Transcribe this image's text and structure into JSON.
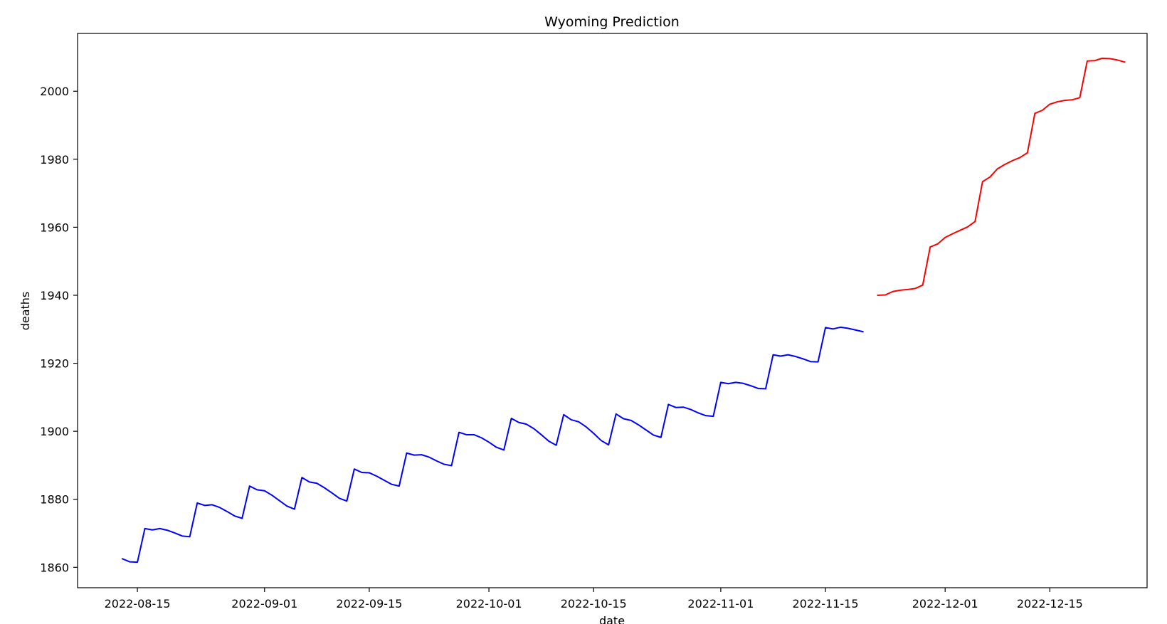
{
  "chart_data": {
    "type": "line",
    "title": "Wyoming Prediction",
    "xlabel": "date",
    "ylabel": "deaths",
    "x_axis_type": "date",
    "xlim": [
      "2022-08-07",
      "2022-12-28"
    ],
    "ylim": [
      1854,
      2017
    ],
    "x_ticks": [
      "2022-08-15",
      "2022-09-01",
      "2022-09-15",
      "2022-10-01",
      "2022-10-15",
      "2022-11-01",
      "2022-11-15",
      "2022-12-01",
      "2022-12-15"
    ],
    "y_ticks": [
      1860,
      1880,
      1900,
      1920,
      1940,
      1960,
      1980,
      2000
    ],
    "grid": false,
    "legend": false,
    "series": [
      {
        "color": "#0000ff",
        "points": [
          [
            "2022-08-13",
            1862.5
          ],
          [
            "2022-08-14",
            1861.6
          ],
          [
            "2022-08-15",
            1861.5
          ],
          [
            "2022-08-16",
            1871.4
          ],
          [
            "2022-08-17",
            1871.0
          ],
          [
            "2022-08-18",
            1871.4
          ],
          [
            "2022-08-19",
            1870.9
          ],
          [
            "2022-08-20",
            1870.1
          ],
          [
            "2022-08-21",
            1869.2
          ],
          [
            "2022-08-22",
            1869.0
          ],
          [
            "2022-08-23",
            1878.9
          ],
          [
            "2022-08-24",
            1878.2
          ],
          [
            "2022-08-25",
            1878.4
          ],
          [
            "2022-08-26",
            1877.6
          ],
          [
            "2022-08-27",
            1876.4
          ],
          [
            "2022-08-28",
            1875.1
          ],
          [
            "2022-08-29",
            1874.4
          ],
          [
            "2022-08-30",
            1883.9
          ],
          [
            "2022-08-31",
            1882.8
          ],
          [
            "2022-09-01",
            1882.5
          ],
          [
            "2022-09-02",
            1881.2
          ],
          [
            "2022-09-03",
            1879.6
          ],
          [
            "2022-09-04",
            1878.0
          ],
          [
            "2022-09-05",
            1877.1
          ],
          [
            "2022-09-06",
            1886.4
          ],
          [
            "2022-09-07",
            1885.1
          ],
          [
            "2022-09-08",
            1884.7
          ],
          [
            "2022-09-09",
            1883.4
          ],
          [
            "2022-09-10",
            1881.9
          ],
          [
            "2022-09-11",
            1880.3
          ],
          [
            "2022-09-12",
            1879.5
          ],
          [
            "2022-09-13",
            1888.9
          ],
          [
            "2022-09-14",
            1887.9
          ],
          [
            "2022-09-15",
            1887.8
          ],
          [
            "2022-09-16",
            1886.8
          ],
          [
            "2022-09-17",
            1885.6
          ],
          [
            "2022-09-18",
            1884.4
          ],
          [
            "2022-09-19",
            1883.9
          ],
          [
            "2022-09-20",
            1893.6
          ],
          [
            "2022-09-21",
            1893.0
          ],
          [
            "2022-09-22",
            1893.1
          ],
          [
            "2022-09-23",
            1892.4
          ],
          [
            "2022-09-24",
            1891.3
          ],
          [
            "2022-09-25",
            1890.3
          ],
          [
            "2022-09-26",
            1889.9
          ],
          [
            "2022-09-27",
            1899.7
          ],
          [
            "2022-09-28",
            1899.0
          ],
          [
            "2022-09-29",
            1899.0
          ],
          [
            "2022-09-30",
            1898.1
          ],
          [
            "2022-10-01",
            1896.8
          ],
          [
            "2022-10-02",
            1895.3
          ],
          [
            "2022-10-03",
            1894.5
          ],
          [
            "2022-10-04",
            1903.8
          ],
          [
            "2022-10-05",
            1902.6
          ],
          [
            "2022-10-06",
            1902.1
          ],
          [
            "2022-10-07",
            1900.8
          ],
          [
            "2022-10-08",
            1899.0
          ],
          [
            "2022-10-09",
            1897.1
          ],
          [
            "2022-10-10",
            1895.9
          ],
          [
            "2022-10-11",
            1904.9
          ],
          [
            "2022-10-12",
            1903.4
          ],
          [
            "2022-10-13",
            1902.8
          ],
          [
            "2022-10-14",
            1901.3
          ],
          [
            "2022-10-15",
            1899.4
          ],
          [
            "2022-10-16",
            1897.3
          ],
          [
            "2022-10-17",
            1896.0
          ],
          [
            "2022-10-18",
            1905.1
          ],
          [
            "2022-10-19",
            1903.7
          ],
          [
            "2022-10-20",
            1903.2
          ],
          [
            "2022-10-21",
            1901.9
          ],
          [
            "2022-10-22",
            1900.4
          ],
          [
            "2022-10-23",
            1898.9
          ],
          [
            "2022-10-24",
            1898.2
          ],
          [
            "2022-10-25",
            1907.9
          ],
          [
            "2022-10-26",
            1907.0
          ],
          [
            "2022-10-27",
            1907.1
          ],
          [
            "2022-10-28",
            1906.4
          ],
          [
            "2022-10-29",
            1905.4
          ],
          [
            "2022-10-30",
            1904.6
          ],
          [
            "2022-10-31",
            1904.4
          ],
          [
            "2022-11-01",
            1914.4
          ],
          [
            "2022-11-02",
            1914.0
          ],
          [
            "2022-11-03",
            1914.4
          ],
          [
            "2022-11-04",
            1914.1
          ],
          [
            "2022-11-05",
            1913.4
          ],
          [
            "2022-11-06",
            1912.6
          ],
          [
            "2022-11-07",
            1912.5
          ],
          [
            "2022-11-08",
            1922.5
          ],
          [
            "2022-11-09",
            1922.1
          ],
          [
            "2022-11-10",
            1922.5
          ],
          [
            "2022-11-11",
            1922.0
          ],
          [
            "2022-11-12",
            1921.3
          ],
          [
            "2022-11-13",
            1920.5
          ],
          [
            "2022-11-14",
            1920.4
          ],
          [
            "2022-11-15",
            1930.5
          ],
          [
            "2022-11-16",
            1930.1
          ],
          [
            "2022-11-17",
            1930.6
          ],
          [
            "2022-11-18",
            1930.3
          ],
          [
            "2022-11-19",
            1929.8
          ],
          [
            "2022-11-20",
            1929.3
          ]
        ]
      },
      {
        "color": "#ff0000",
        "points": [
          [
            "2022-11-22",
            1940.0
          ],
          [
            "2022-11-23",
            1940.1
          ],
          [
            "2022-11-24",
            1941.1
          ],
          [
            "2022-11-25",
            1941.5
          ],
          [
            "2022-11-26",
            1941.7
          ],
          [
            "2022-11-27",
            1942.0
          ],
          [
            "2022-11-28",
            1943.0
          ],
          [
            "2022-11-29",
            1954.2
          ],
          [
            "2022-11-30",
            1955.1
          ],
          [
            "2022-12-01",
            1957.0
          ],
          [
            "2022-12-02",
            1958.1
          ],
          [
            "2022-12-03",
            1959.1
          ],
          [
            "2022-12-04",
            1960.1
          ],
          [
            "2022-12-05",
            1961.7
          ],
          [
            "2022-12-06",
            1973.4
          ],
          [
            "2022-12-07",
            1974.8
          ],
          [
            "2022-12-08",
            1977.2
          ],
          [
            "2022-12-09",
            1978.5
          ],
          [
            "2022-12-10",
            1979.6
          ],
          [
            "2022-12-11",
            1980.5
          ],
          [
            "2022-12-12",
            1981.9
          ],
          [
            "2022-12-13",
            1993.5
          ],
          [
            "2022-12-14",
            1994.4
          ],
          [
            "2022-12-15",
            1996.2
          ],
          [
            "2022-12-16",
            1996.9
          ],
          [
            "2022-12-17",
            1997.3
          ],
          [
            "2022-12-18",
            1997.5
          ],
          [
            "2022-12-19",
            1998.1
          ],
          [
            "2022-12-20",
            2008.9
          ],
          [
            "2022-12-21",
            2009.0
          ],
          [
            "2022-12-22",
            2009.7
          ],
          [
            "2022-12-23",
            2009.6
          ],
          [
            "2022-12-24",
            2009.2
          ],
          [
            "2022-12-25",
            2008.6
          ]
        ]
      }
    ]
  }
}
